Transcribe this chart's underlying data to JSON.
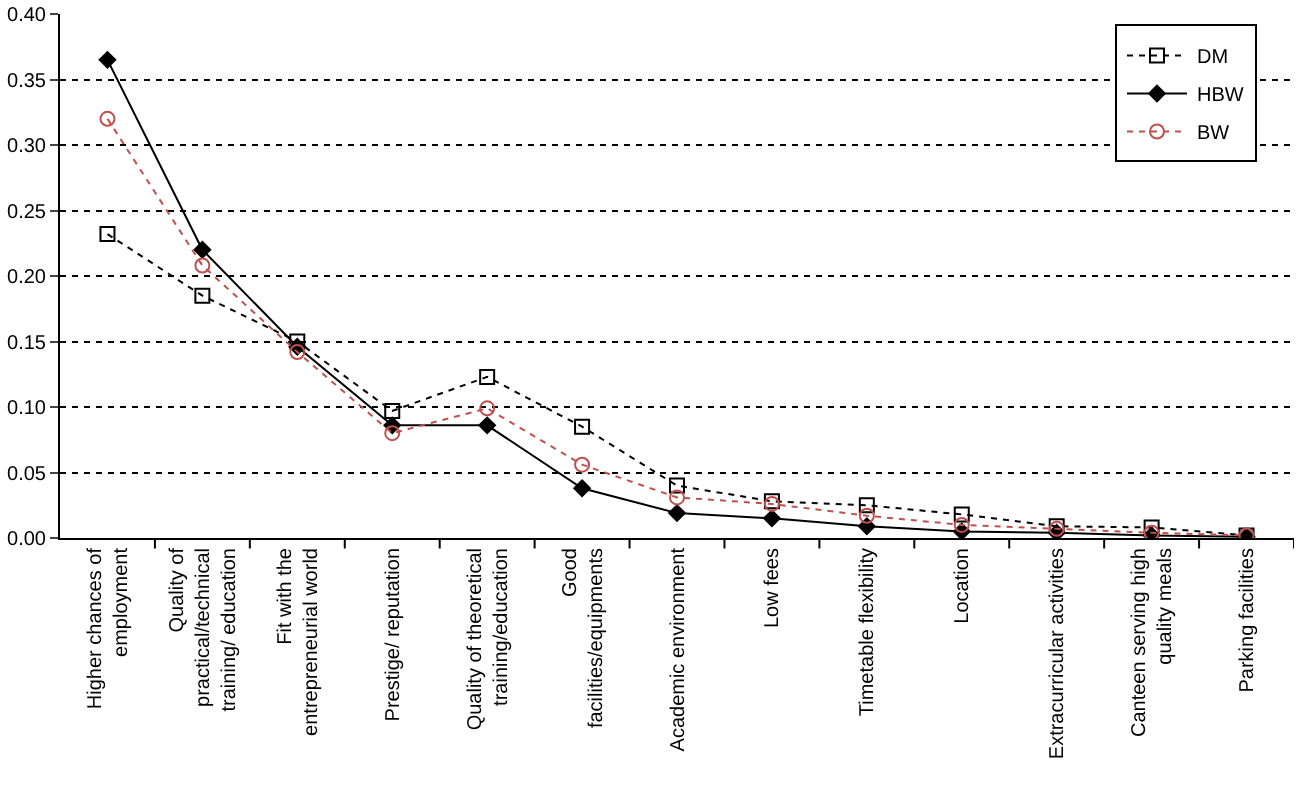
{
  "chart_data": {
    "type": "line",
    "categories": [
      "Higher chances of\nemployment",
      "Quality of\npractical/technical\ntraining/ education",
      "Fit with the\nentrepreneurial world",
      "Prestige/ reputation",
      "Quality of theoretical\ntraining/education",
      "Good\nfacilities/equipments",
      "Academic environment",
      "Low fees",
      "Timetable flexibility",
      "Location",
      "Extracurricular activities",
      "Canteen serving high\nquality meals",
      "Parking facilities"
    ],
    "ylim": [
      0,
      0.4
    ],
    "yticks": [
      {
        "value": 0,
        "label": "0.00"
      },
      {
        "value": 0.05,
        "label": "0.05"
      },
      {
        "value": 0.1,
        "label": "0.10"
      },
      {
        "value": 0.15,
        "label": "0.15"
      },
      {
        "value": 0.2,
        "label": "0.20"
      },
      {
        "value": 0.25,
        "label": "0.25"
      },
      {
        "value": 0.3,
        "label": "0.30"
      },
      {
        "value": 0.35,
        "label": "0.35"
      },
      {
        "value": 0.4,
        "label": "0.40"
      }
    ],
    "grid": "y",
    "legend": "top right",
    "series": [
      {
        "name": "DM",
        "color": "#000000",
        "marker": "square",
        "line_style": "dashed",
        "values": [
          0.232,
          0.185,
          0.15,
          0.097,
          0.123,
          0.085,
          0.04,
          0.028,
          0.025,
          0.018,
          0.009,
          0.008,
          0.002
        ]
      },
      {
        "name": "HBW",
        "color": "#000000",
        "marker": "diamond",
        "line_style": "solid",
        "values": [
          0.365,
          0.22,
          0.146,
          0.086,
          0.086,
          0.038,
          0.019,
          0.015,
          0.009,
          0.005,
          0.004,
          0.002,
          0.001
        ]
      },
      {
        "name": "BW",
        "color": "#c0504d",
        "marker": "circle",
        "line_style": "dashed",
        "values": [
          0.32,
          0.208,
          0.142,
          0.08,
          0.099,
          0.056,
          0.031,
          0.026,
          0.017,
          0.01,
          0.007,
          0.004,
          0.002
        ]
      }
    ]
  }
}
